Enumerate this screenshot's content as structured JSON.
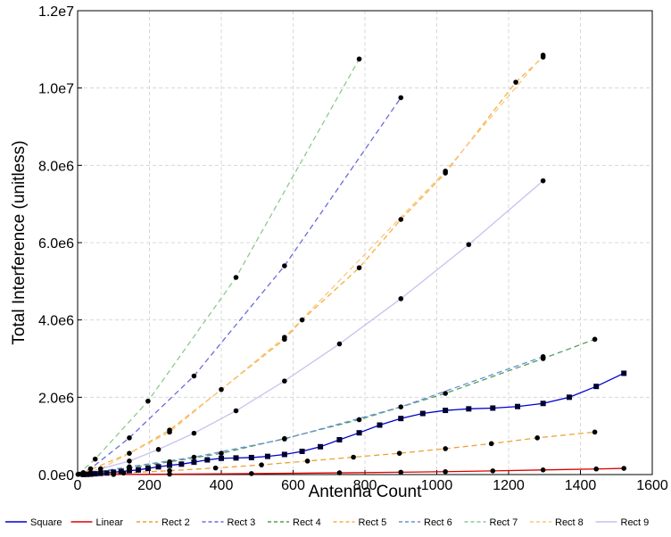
{
  "chart_data": {
    "type": "line",
    "x_label": "Antenna Count",
    "y_label": "Total Interference (unitless)",
    "xlim": [
      0,
      1600
    ],
    "xticks": [
      0,
      200,
      400,
      600,
      800,
      1000,
      1200,
      1400,
      1600
    ],
    "ylim": [
      0,
      12000000
    ],
    "yticks": [
      {
        "value": 0,
        "label": "0.0e0"
      },
      {
        "value": 2000000,
        "label": "2.0e6"
      },
      {
        "value": 4000000,
        "label": "4.0e6"
      },
      {
        "value": 6000000,
        "label": "6.0e6"
      },
      {
        "value": 8000000,
        "label": "8.0e6"
      },
      {
        "value": 10000000,
        "label": "1.0e7"
      },
      {
        "value": 12000000,
        "label": "1.2e7"
      }
    ],
    "grid": true,
    "legend": "bottom",
    "series": [
      {
        "name": "Square",
        "color": "#0000cc",
        "style": "solid",
        "marker": "square",
        "x": [
          16,
          25,
          36,
          49,
          64,
          81,
          100,
          121,
          144,
          169,
          196,
          225,
          256,
          289,
          324,
          361,
          400,
          441,
          484,
          529,
          576,
          625,
          676,
          729,
          784,
          841,
          900,
          961,
          1024,
          1089,
          1156,
          1225,
          1296,
          1369,
          1444,
          1521
        ],
        "values": [
          2000,
          5000,
          10000,
          20000,
          30000,
          40000,
          60000,
          80000,
          100000,
          120000,
          160000,
          200000,
          240000,
          270000,
          320000,
          380000,
          420000,
          430000,
          440000,
          470000,
          520000,
          600000,
          720000,
          900000,
          1080000,
          1280000,
          1450000,
          1580000,
          1660000,
          1700000,
          1720000,
          1760000,
          1840000,
          2000000,
          2280000,
          2620000
        ]
      },
      {
        "name": "Linear",
        "color": "#dd0000",
        "style": "solid",
        "marker": "dot",
        "x": [
          16,
          100,
          256,
          484,
          729,
          900,
          1024,
          1156,
          1296,
          1444,
          1521
        ],
        "values": [
          1000,
          3000,
          10000,
          25000,
          45000,
          60000,
          75000,
          95000,
          120000,
          145000,
          160000
        ]
      },
      {
        "name": "Rect 2",
        "color": "#f0a030",
        "style": "dashed",
        "marker": "dot",
        "x": [
          32,
          128,
          256,
          384,
          512,
          640,
          768,
          896,
          1024,
          1152,
          1280,
          1440
        ],
        "values": [
          10000,
          40000,
          100000,
          170000,
          250000,
          350000,
          450000,
          550000,
          670000,
          800000,
          950000,
          1100000
        ]
      },
      {
        "name": "Rect 3",
        "color": "#6a6ae0",
        "style": "dashed",
        "marker": "dot",
        "x": [
          4,
          36,
          144,
          324,
          576,
          900
        ],
        "values": [
          10000,
          150000,
          950000,
          2550000,
          5400000,
          9750000
        ]
      },
      {
        "name": "Rect 4",
        "color": "#50a050",
        "style": "dashed",
        "marker": "dot",
        "x": [
          16,
          64,
          144,
          256,
          400,
          576,
          784,
          1024,
          1296,
          1440
        ],
        "values": [
          15000,
          70000,
          170000,
          330000,
          550000,
          930000,
          1420000,
          2100000,
          3000000,
          3500000
        ]
      },
      {
        "name": "Rect 5",
        "color": "#f5b040",
        "style": "dashed",
        "marker": "dot",
        "x": [
          16,
          144,
          256,
          400,
          576,
          625,
          784,
          900,
          1024,
          1220,
          1296
        ],
        "values": [
          50000,
          550000,
          1150000,
          2200000,
          3500000,
          4000000,
          5350000,
          6600000,
          7800000,
          10150000,
          10800000
        ]
      },
      {
        "name": "Rect 6",
        "color": "#6b8ee0",
        "style": "dashed",
        "marker": "dot",
        "x": [
          36,
          144,
          324,
          576,
          900,
          1296
        ],
        "values": [
          50000,
          200000,
          450000,
          920000,
          1750000,
          3050000
        ]
      },
      {
        "name": "Rect 7",
        "color": "#90c890",
        "style": "dashed",
        "marker": "dot",
        "x": [
          1,
          49,
          196,
          441,
          784
        ],
        "values": [
          5000,
          400000,
          1900000,
          5100000,
          10750000
        ]
      },
      {
        "name": "Rect 8",
        "color": "#f8c880",
        "style": "dashed",
        "marker": "dot",
        "x": [
          64,
          256,
          576,
          1024,
          1296
        ],
        "values": [
          150000,
          1100000,
          3550000,
          7850000,
          10850000
        ]
      },
      {
        "name": "Rect 9",
        "color": "#c8c0f0",
        "style": "solid",
        "marker": "dot",
        "x": [
          16,
          144,
          225,
          324,
          441,
          576,
          729,
          900,
          1089,
          1296
        ],
        "values": [
          30000,
          350000,
          650000,
          1070000,
          1650000,
          2420000,
          3380000,
          4550000,
          5950000,
          7600000
        ]
      }
    ]
  }
}
